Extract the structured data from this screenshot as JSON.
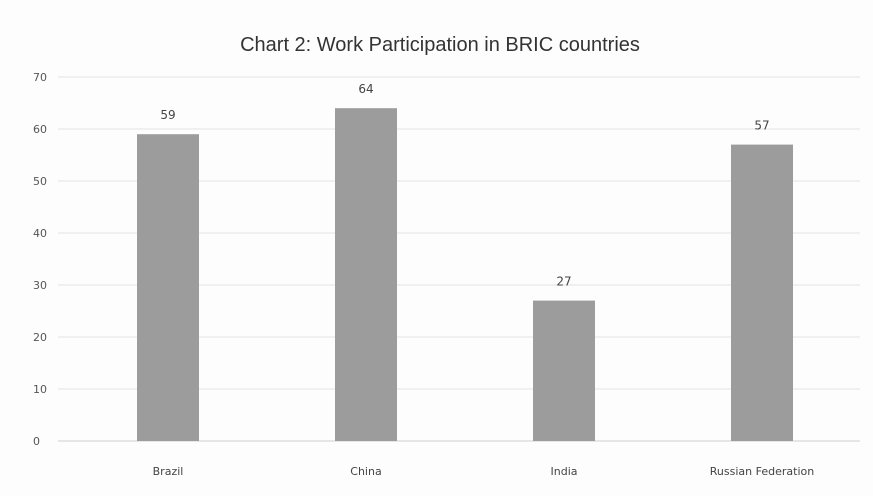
{
  "chart_data": {
    "type": "bar",
    "title": "Chart 2: Work Participation in BRIC countries",
    "categories": [
      "Brazil",
      "China",
      "India",
      "Russian Federation"
    ],
    "values": [
      59,
      64,
      27,
      57
    ],
    "data_labels": [
      "59",
      "64",
      "27",
      "57"
    ],
    "yticks": [
      "0",
      "10",
      "20",
      "30",
      "40",
      "50",
      "60",
      "70"
    ],
    "ylim": [
      0,
      70
    ],
    "xlabel": "",
    "ylabel": "",
    "grid": true,
    "legend": "none",
    "bar_color": "#9c9c9c"
  }
}
